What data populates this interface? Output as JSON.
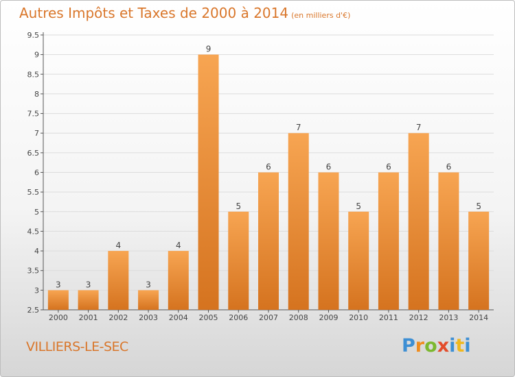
{
  "title": "Autres Impôts et Taxes de 2000 à 2014",
  "subtitle": "(en milliers d'€)",
  "place": "VILLIERS-LE-SEC",
  "logo": {
    "p": "P",
    "r": "r",
    "o": "o",
    "x": "x",
    "i": "i",
    "t": "t",
    "i2": "i"
  },
  "colors": {
    "bar_light": "#f7a552",
    "bar_dark": "#d5731f",
    "title": "#d9762a"
  },
  "chart_data": {
    "type": "bar",
    "categories": [
      "2000",
      "2001",
      "2002",
      "2003",
      "2004",
      "2005",
      "2006",
      "2007",
      "2008",
      "2009",
      "2010",
      "2011",
      "2012",
      "2013",
      "2014"
    ],
    "values": [
      3,
      3,
      4,
      3,
      4,
      9,
      5,
      6,
      7,
      6,
      5,
      6,
      7,
      6,
      5
    ],
    "ylim": [
      2.5,
      9.5
    ],
    "yticks": [
      "2.5",
      "3",
      "3.5",
      "4",
      "4.5",
      "5",
      "5.5",
      "6",
      "6.5",
      "7",
      "7.5",
      "8",
      "8.5",
      "9",
      "9.5"
    ],
    "grid": true
  }
}
